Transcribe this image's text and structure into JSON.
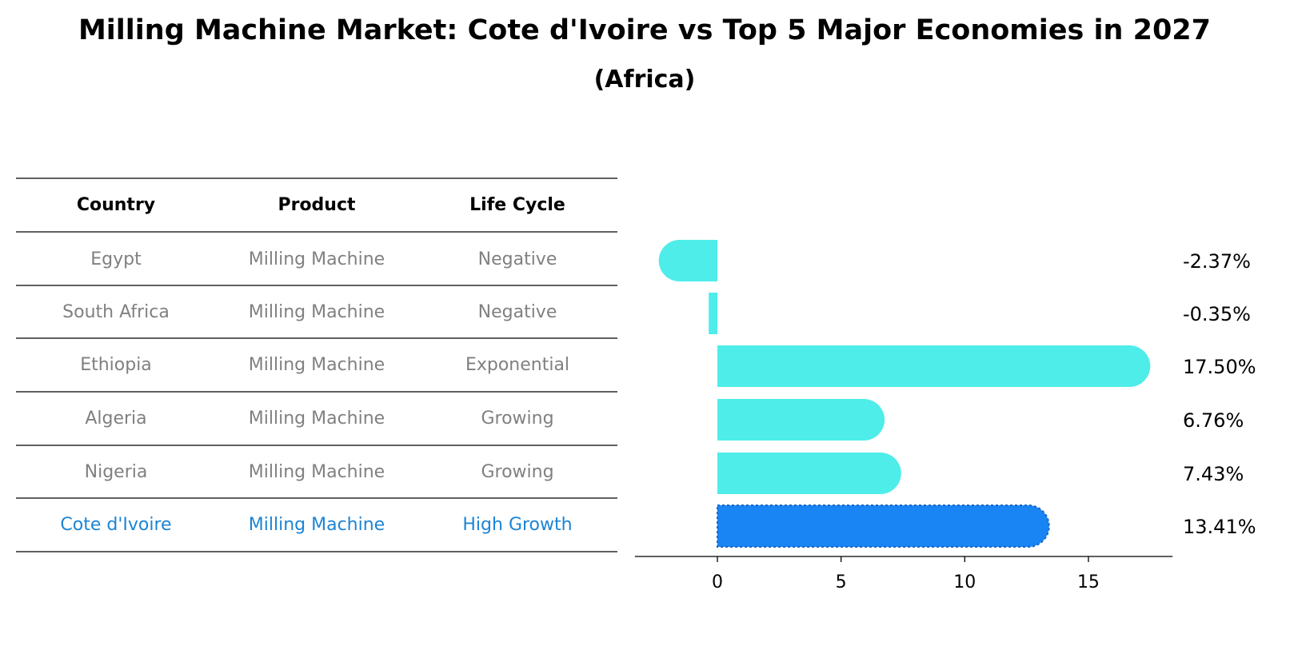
{
  "chart_data": {
    "type": "bar",
    "orientation": "horizontal",
    "title": "Milling Machine Market: Cote d'Ivoire vs Top 5 Major Economies in 2027",
    "subtitle": "(Africa)",
    "table": {
      "columns": [
        "Country",
        "Product",
        "Life Cycle"
      ],
      "rows": [
        {
          "country": "Egypt",
          "product": "Milling Machine",
          "life_cycle": "Negative",
          "highlight": false
        },
        {
          "country": "South Africa",
          "product": "Milling Machine",
          "life_cycle": "Negative",
          "highlight": false
        },
        {
          "country": "Ethiopia",
          "product": "Milling Machine",
          "life_cycle": "Exponential",
          "highlight": false
        },
        {
          "country": "Algeria",
          "product": "Milling Machine",
          "life_cycle": "Growing",
          "highlight": false
        },
        {
          "country": "Nigeria",
          "product": "Milling Machine",
          "life_cycle": "Growing",
          "highlight": false
        },
        {
          "country": "Cote d'Ivoire",
          "product": "Milling Machine",
          "life_cycle": "High Growth",
          "highlight": true
        }
      ]
    },
    "categories": [
      "Egypt",
      "South Africa",
      "Ethiopia",
      "Algeria",
      "Nigeria",
      "Cote d'Ivoire"
    ],
    "values": [
      -2.37,
      -0.35,
      17.5,
      6.76,
      7.43,
      13.41
    ],
    "value_labels": [
      "-2.37%",
      "-0.35%",
      "17.50%",
      "6.76%",
      "7.43%",
      "13.41%"
    ],
    "xlim": [
      -3.4,
      18.5
    ],
    "xticks": [
      0,
      5,
      10,
      15
    ],
    "grid": false,
    "colors": {
      "bar": "#4EEDEA",
      "highlight_bar": "#1985F4",
      "muted_text": "#808080",
      "highlight_text": "#1C84D5",
      "rule": "#000000"
    }
  }
}
